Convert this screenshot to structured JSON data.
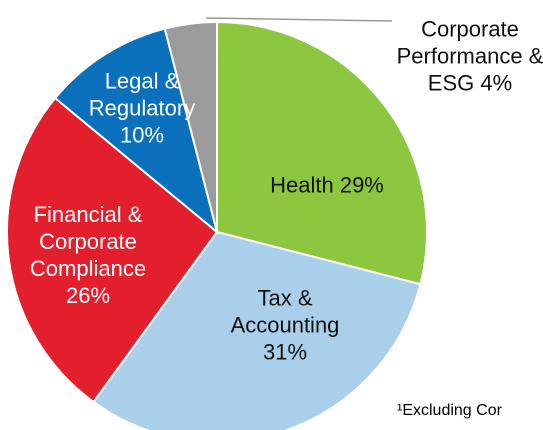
{
  "chart_data": {
    "type": "pie",
    "categories": [
      "Health",
      "Tax & Accounting",
      "Financial & Corporate Compliance",
      "Legal & Regulatory",
      "Corporate Performance & ESG"
    ],
    "values": [
      29,
      31,
      26,
      10,
      4
    ],
    "value_labels": [
      "29%",
      "31%",
      "26%",
      "10%",
      "4%"
    ],
    "colors": [
      "#8dc63f",
      "#a9cfea",
      "#e31f2d",
      "#0a70bb",
      "#9b9b9b"
    ],
    "footnote": "¹Excluding Cor"
  }
}
